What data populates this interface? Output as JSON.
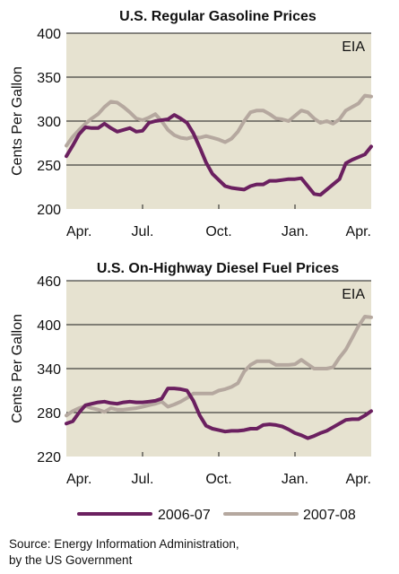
{
  "chart_data": [
    {
      "type": "line",
      "title": "U.S. Regular Gasoline Prices",
      "ylabel": "Cents Per Gallon",
      "badge": "EIA",
      "xticks": [
        "Apr.",
        "Jul.",
        "Oct.",
        "Jan.",
        "Apr."
      ],
      "yticks": [
        "200",
        "250",
        "300",
        "350",
        "400"
      ],
      "ylim": [
        200,
        400
      ],
      "grid": true,
      "series": [
        {
          "name": "2006-07",
          "color": "#6b2060",
          "values": [
            260,
            272,
            285,
            293,
            292,
            292,
            297,
            292,
            288,
            290,
            292,
            288,
            289,
            298,
            300,
            301,
            302,
            307,
            303,
            298,
            286,
            270,
            253,
            240,
            233,
            226,
            224,
            223,
            222,
            226,
            228,
            228,
            232,
            232,
            233,
            234,
            234,
            235,
            226,
            217,
            216,
            222,
            228,
            234,
            252,
            256,
            259,
            262,
            271
          ]
        },
        {
          "name": "2007-08",
          "color": "#b5a89f",
          "values": [
            272,
            282,
            290,
            297,
            303,
            308,
            316,
            322,
            321,
            316,
            310,
            303,
            301,
            304,
            308,
            300,
            290,
            284,
            281,
            280,
            282,
            281,
            283,
            281,
            279,
            276,
            280,
            288,
            300,
            310,
            312,
            312,
            308,
            303,
            302,
            300,
            306,
            312,
            310,
            303,
            298,
            300,
            297,
            302,
            312,
            316,
            320,
            329,
            328
          ]
        }
      ]
    },
    {
      "type": "line",
      "title": "U.S. On-Highway Diesel Fuel Prices",
      "ylabel": "Cents Per Gallon",
      "badge": "EIA",
      "xticks": [
        "Apr.",
        "Jul.",
        "Oct.",
        "Jan.",
        "Apr."
      ],
      "yticks": [
        "220",
        "280",
        "340",
        "400",
        "460"
      ],
      "ylim": [
        220,
        460
      ],
      "grid": true,
      "series": [
        {
          "name": "2006-07",
          "color": "#6b2060",
          "values": [
            265,
            268,
            280,
            290,
            292,
            294,
            295,
            293,
            292,
            294,
            295,
            294,
            294,
            295,
            296,
            299,
            313,
            313,
            312,
            310,
            296,
            276,
            262,
            258,
            256,
            254,
            255,
            255,
            256,
            258,
            258,
            263,
            264,
            263,
            261,
            257,
            252,
            249,
            245,
            248,
            252,
            255,
            260,
            265,
            270,
            271,
            271,
            276,
            282
          ]
        },
        {
          "name": "2007-08",
          "color": "#b5a89f",
          "values": [
            276,
            282,
            286,
            289,
            286,
            284,
            281,
            286,
            284,
            284,
            285,
            286,
            288,
            290,
            292,
            295,
            288,
            291,
            295,
            300,
            306,
            306,
            306,
            306,
            310,
            312,
            315,
            320,
            336,
            345,
            350,
            350,
            350,
            345,
            345,
            345,
            346,
            352,
            346,
            340,
            340,
            340,
            342,
            355,
            366,
            382,
            398,
            411,
            410
          ]
        }
      ]
    }
  ],
  "source": {
    "line1": "Source: Energy Information Administration,",
    "line2": "by the US Government"
  }
}
